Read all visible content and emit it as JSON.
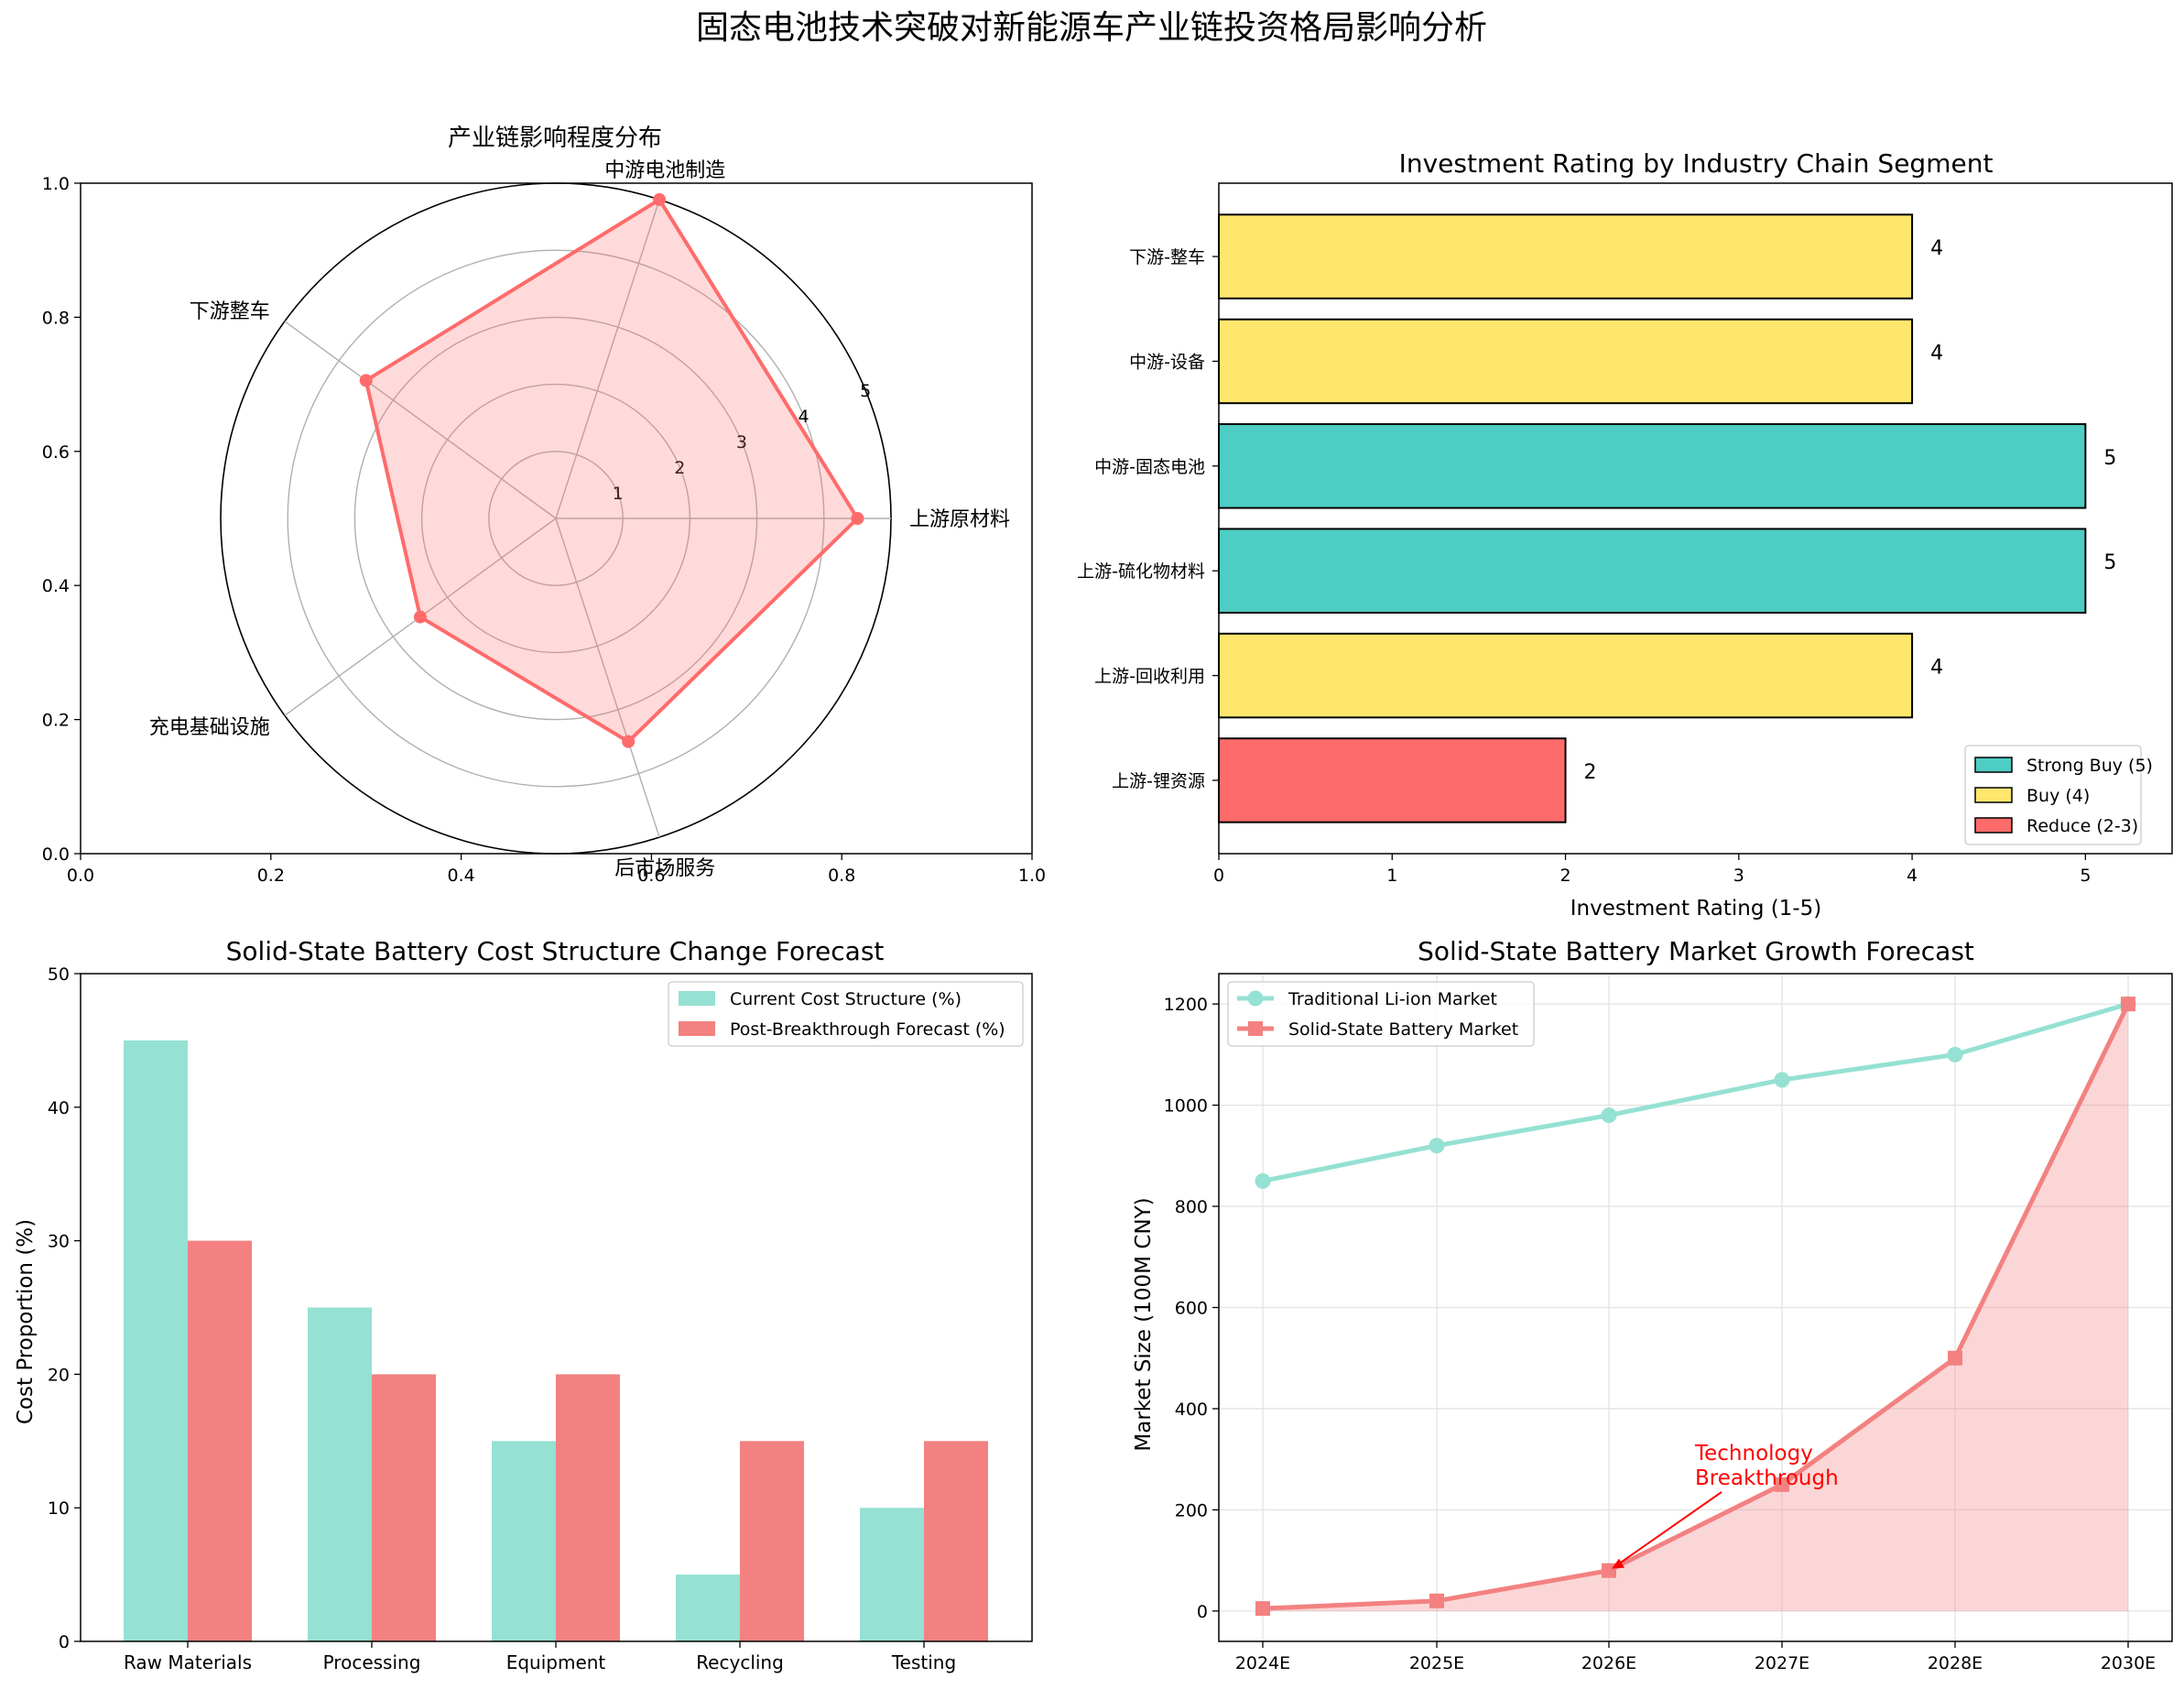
{
  "figure_title": "固态电池技术突破对新能源车产业链投资格局影响分析",
  "chart_data": [
    {
      "type": "radar",
      "title": "产业链影响程度分布",
      "categories": [
        "上游原材料",
        "中游电池制造",
        "下游整车",
        "充电基础设施",
        "后市场服务"
      ],
      "values": [
        4.5,
        5.0,
        3.5,
        2.5,
        3.5
      ],
      "radial_ticks": [
        1,
        2,
        3,
        4,
        5
      ],
      "rmax": 5,
      "frame_ticks": [
        "0.0",
        "0.2",
        "0.4",
        "0.6",
        "0.8",
        "1.0"
      ],
      "color": "#ff6b6b"
    },
    {
      "type": "bar",
      "orientation": "horizontal",
      "title": "Investment Rating by Industry Chain Segment",
      "xlabel": "Investment Rating (1-5)",
      "categories": [
        "下游-整车",
        "中游-设备",
        "中游-固态电池",
        "上游-硫化物材料",
        "上游-回收利用",
        "上游-锂资源"
      ],
      "values": [
        4,
        4,
        5,
        5,
        4,
        2
      ],
      "colors": [
        "#ffe66d",
        "#ffe66d",
        "#4ecdc4",
        "#4ecdc4",
        "#ffe66d",
        "#ff6b6b"
      ],
      "xlim": [
        0,
        5.5
      ],
      "xticks": [
        0,
        1,
        2,
        3,
        4,
        5
      ],
      "legend": [
        {
          "label": "Strong Buy (5)",
          "color": "#4ecdc4"
        },
        {
          "label": "Buy (4)",
          "color": "#ffe66d"
        },
        {
          "label": "Reduce (2-3)",
          "color": "#ff6b6b"
        }
      ]
    },
    {
      "type": "bar",
      "title": "Solid-State Battery Cost Structure Change Forecast",
      "ylabel": "Cost Proportion (%)",
      "categories": [
        "Raw Materials",
        "Processing",
        "Equipment",
        "Recycling",
        "Testing"
      ],
      "series": [
        {
          "name": "Current Cost Structure (%)",
          "values": [
            45,
            25,
            15,
            5,
            10
          ],
          "color": "#95e1d3"
        },
        {
          "name": "Post-Breakthrough Forecast (%)",
          "values": [
            30,
            20,
            20,
            15,
            15
          ],
          "color": "#f38181"
        }
      ],
      "ylim": [
        0,
        50
      ],
      "yticks": [
        0,
        10,
        20,
        30,
        40,
        50
      ]
    },
    {
      "type": "line",
      "title": "Solid-State Battery Market Growth Forecast",
      "ylabel": "Market Size (100M CNY)",
      "categories": [
        "2024E",
        "2025E",
        "2026E",
        "2027E",
        "2028E",
        "2030E"
      ],
      "series": [
        {
          "name": "Traditional Li-ion Market",
          "values": [
            850,
            920,
            980,
            1050,
            1100,
            1200
          ],
          "color": "#95e1d3",
          "marker": "circle"
        },
        {
          "name": "Solid-State Battery Market",
          "values": [
            5,
            20,
            80,
            250,
            500,
            1200
          ],
          "color": "#f38181",
          "marker": "square"
        }
      ],
      "ylim": [
        -60,
        1260
      ],
      "yticks": [
        0,
        200,
        400,
        600,
        800,
        1000,
        1200
      ],
      "annotation": {
        "text_line1": "Technology",
        "text_line2": "Breakthrough",
        "category": "2026E",
        "value": 80
      }
    }
  ]
}
